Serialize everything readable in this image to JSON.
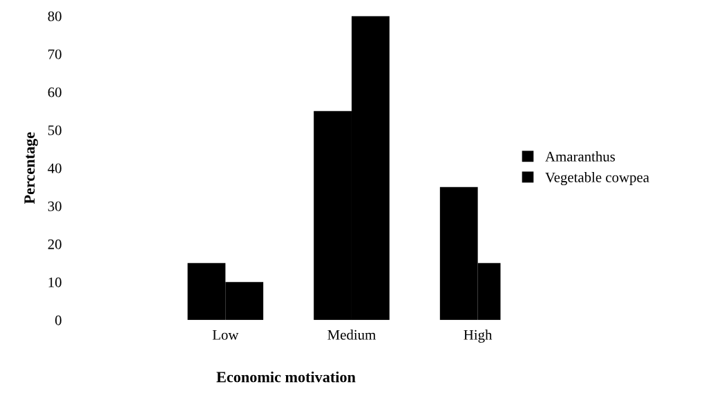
{
  "chart_data": {
    "type": "bar",
    "xlabel": "Economic motivation",
    "ylabel": "Percentage",
    "categories": [
      "Low",
      "Medium",
      "High"
    ],
    "series": [
      {
        "name": "Amaranthus",
        "color": "#000000",
        "values": [
          15,
          55,
          35
        ]
      },
      {
        "name": "Vegetable cowpea",
        "color": "#000000",
        "values": [
          10,
          80,
          15
        ]
      }
    ],
    "ylim": [
      0,
      80
    ],
    "yticks": [
      0,
      10,
      20,
      30,
      40,
      50,
      60,
      70,
      80
    ],
    "grid": false,
    "legend": "right"
  }
}
